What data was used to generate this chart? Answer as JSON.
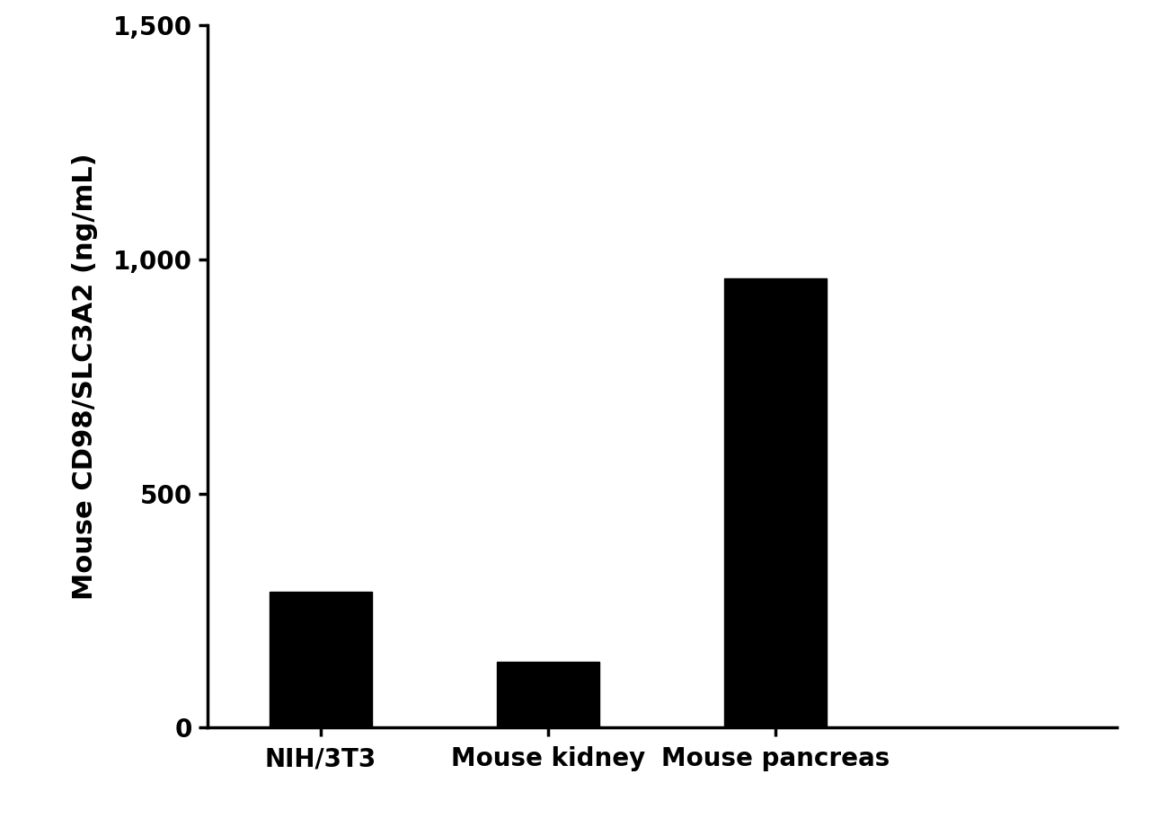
{
  "categories": [
    "NIH/3T3",
    "Mouse kidney",
    "Mouse pancreas"
  ],
  "values": [
    291.1,
    140.2,
    958.6
  ],
  "bar_color": "#000000",
  "ylabel": "Mouse CD98/SLC3A2 (ng/mL)",
  "ylim": [
    0,
    1500
  ],
  "yticks": [
    0,
    500,
    1000,
    1500
  ],
  "background_color": "#ffffff",
  "bar_width": 0.45,
  "ylabel_fontsize": 22,
  "tick_fontsize": 20,
  "xtick_fontsize": 20,
  "xlim": [
    -0.5,
    3.5
  ]
}
